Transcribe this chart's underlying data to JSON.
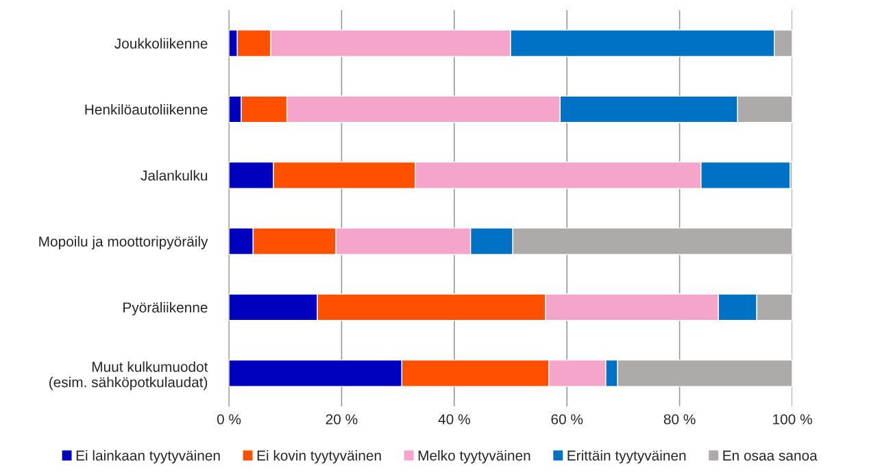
{
  "chart_data": {
    "type": "bar",
    "orientation": "horizontal",
    "stacked": true,
    "categories": [
      "Joukkoliikenne",
      "Henkilöautoliikenne",
      "Jalankulku",
      "Mopoilu ja moottoripyöräily",
      "Pyöräliikenne",
      "Muut kulkumuodot\n(esim. sähköpotkulaudat)"
    ],
    "series": [
      {
        "name": "Ei lainkaan tyytyväinen",
        "color": "#0000bf",
        "values": [
          1.5,
          2.2,
          7.9,
          4.3,
          15.7,
          30.7
        ]
      },
      {
        "name": "Ei kovin tyytyväinen",
        "color": "#ff4f00",
        "values": [
          5.9,
          8.1,
          25.2,
          14.7,
          40.5,
          26.1
        ]
      },
      {
        "name": "Melko tyytyväinen",
        "color": "#f4a5c9",
        "values": [
          42.6,
          48.5,
          50.7,
          23.9,
          30.7,
          10.1
        ]
      },
      {
        "name": "Erittäin tyytyväinen",
        "color": "#0072c6",
        "values": [
          46.8,
          31.5,
          15.8,
          7.5,
          6.8,
          2.1
        ]
      },
      {
        "name": "En osaa sanoa",
        "color": "#adaaa9",
        "values": [
          3.2,
          9.7,
          0.4,
          49.6,
          6.3,
          31.0
        ]
      }
    ],
    "xlim": [
      0,
      100
    ],
    "xticks": [
      {
        "value": 0,
        "label": "0 %"
      },
      {
        "value": 20,
        "label": "20 %"
      },
      {
        "value": 40,
        "label": "40 %"
      },
      {
        "value": 60,
        "label": "60 %"
      },
      {
        "value": 80,
        "label": "80 %"
      },
      {
        "value": 100,
        "label": "100 %"
      }
    ],
    "grid": "x",
    "legend": "bottom"
  }
}
